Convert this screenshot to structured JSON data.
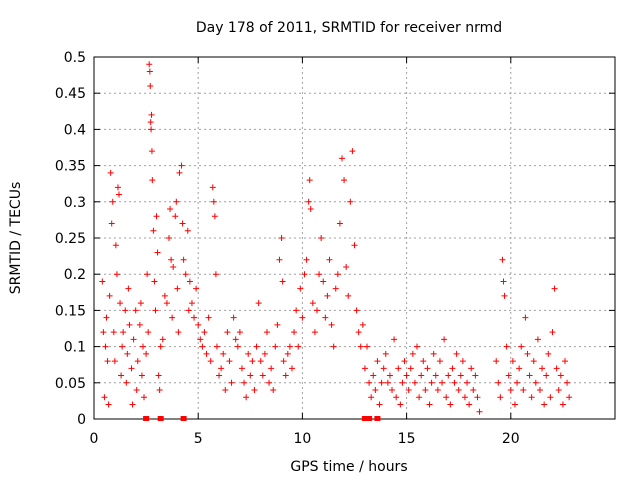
{
  "chart_data": {
    "type": "scatter",
    "title": "Day 178 of 2011, SRMTID for receiver nrmd",
    "xlabel": "GPS time / hours",
    "ylabel": "SRMTID / TECUs",
    "xlim": [
      0,
      25
    ],
    "ylim": [
      0,
      0.5
    ],
    "x_ticks": [
      "0",
      "5",
      "10",
      "15",
      "20"
    ],
    "y_ticks": [
      "0",
      "0.05",
      "0.1",
      "0.15",
      "0.2",
      "0.25",
      "0.3",
      "0.35",
      "0.4",
      "0.45",
      "0.5"
    ],
    "grid": true,
    "marker": "plus",
    "color": "#ff0000",
    "points": [
      [
        0.4,
        0.19
      ],
      [
        0.45,
        0.12
      ],
      [
        0.5,
        0.03
      ],
      [
        0.55,
        0.1
      ],
      [
        0.6,
        0.14
      ],
      [
        0.65,
        0.08
      ],
      [
        0.7,
        0.02
      ],
      [
        0.75,
        0.17
      ],
      [
        0.8,
        0.34
      ],
      [
        0.85,
        0.27
      ],
      [
        0.9,
        0.3
      ],
      [
        0.95,
        0.12
      ],
      [
        1.0,
        0.08
      ],
      [
        1.05,
        0.24
      ],
      [
        1.1,
        0.2
      ],
      [
        1.15,
        0.32
      ],
      [
        1.2,
        0.31
      ],
      [
        1.25,
        0.16
      ],
      [
        1.3,
        0.06
      ],
      [
        1.35,
        0.1
      ],
      [
        1.4,
        0.12
      ],
      [
        1.5,
        0.15
      ],
      [
        1.55,
        0.05
      ],
      [
        1.6,
        0.09
      ],
      [
        1.65,
        0.18
      ],
      [
        1.7,
        0.13
      ],
      [
        1.8,
        0.07
      ],
      [
        1.85,
        0.02
      ],
      [
        1.9,
        0.11
      ],
      [
        2.0,
        0.15
      ],
      [
        2.05,
        0.04
      ],
      [
        2.1,
        0.08
      ],
      [
        2.2,
        0.13
      ],
      [
        2.25,
        0.16
      ],
      [
        2.3,
        0.06
      ],
      [
        2.35,
        0.1
      ],
      [
        2.4,
        0.03
      ],
      [
        2.5,
        0.09
      ],
      [
        2.55,
        0.2
      ],
      [
        2.6,
        0.12
      ],
      [
        2.65,
        0.49
      ],
      [
        2.68,
        0.48
      ],
      [
        2.7,
        0.46
      ],
      [
        2.72,
        0.41
      ],
      [
        2.74,
        0.4
      ],
      [
        2.76,
        0.42
      ],
      [
        2.78,
        0.37
      ],
      [
        2.8,
        0.33
      ],
      [
        2.85,
        0.26
      ],
      [
        2.9,
        0.19
      ],
      [
        2.95,
        0.15
      ],
      [
        3.0,
        0.28
      ],
      [
        3.05,
        0.23
      ],
      [
        3.1,
        0.06
      ],
      [
        3.15,
        0.04
      ],
      [
        3.2,
        0.1
      ],
      [
        3.3,
        0.11
      ],
      [
        3.4,
        0.17
      ],
      [
        3.5,
        0.16
      ],
      [
        3.6,
        0.25
      ],
      [
        3.65,
        0.29
      ],
      [
        3.7,
        0.22
      ],
      [
        3.75,
        0.14
      ],
      [
        3.8,
        0.21
      ],
      [
        3.9,
        0.28
      ],
      [
        3.95,
        0.3
      ],
      [
        4.0,
        0.18
      ],
      [
        4.05,
        0.12
      ],
      [
        4.1,
        0.34
      ],
      [
        4.2,
        0.35
      ],
      [
        4.25,
        0.27
      ],
      [
        4.3,
        0.22
      ],
      [
        4.4,
        0.2
      ],
      [
        4.5,
        0.26
      ],
      [
        4.55,
        0.15
      ],
      [
        4.6,
        0.19
      ],
      [
        4.7,
        0.16
      ],
      [
        4.8,
        0.14
      ],
      [
        4.9,
        0.18
      ],
      [
        5.0,
        0.13
      ],
      [
        5.1,
        0.11
      ],
      [
        5.2,
        0.1
      ],
      [
        5.3,
        0.12
      ],
      [
        5.4,
        0.09
      ],
      [
        5.5,
        0.14
      ],
      [
        5.6,
        0.08
      ],
      [
        5.7,
        0.32
      ],
      [
        5.75,
        0.3
      ],
      [
        5.8,
        0.28
      ],
      [
        5.85,
        0.2
      ],
      [
        5.9,
        0.1
      ],
      [
        6.0,
        0.06
      ],
      [
        6.1,
        0.07
      ],
      [
        6.2,
        0.09
      ],
      [
        6.3,
        0.04
      ],
      [
        6.4,
        0.12
      ],
      [
        6.5,
        0.08
      ],
      [
        6.6,
        0.05
      ],
      [
        6.7,
        0.14
      ],
      [
        6.8,
        0.11
      ],
      [
        6.9,
        0.1
      ],
      [
        7.0,
        0.12
      ],
      [
        7.1,
        0.07
      ],
      [
        7.2,
        0.05
      ],
      [
        7.3,
        0.03
      ],
      [
        7.4,
        0.09
      ],
      [
        7.5,
        0.06
      ],
      [
        7.6,
        0.08
      ],
      [
        7.7,
        0.04
      ],
      [
        7.8,
        0.1
      ],
      [
        7.9,
        0.16
      ],
      [
        8.0,
        0.08
      ],
      [
        8.1,
        0.06
      ],
      [
        8.2,
        0.09
      ],
      [
        8.3,
        0.12
      ],
      [
        8.4,
        0.05
      ],
      [
        8.5,
        0.07
      ],
      [
        8.6,
        0.04
      ],
      [
        8.7,
        0.1
      ],
      [
        8.8,
        0.13
      ],
      [
        8.9,
        0.22
      ],
      [
        9.0,
        0.25
      ],
      [
        9.05,
        0.19
      ],
      [
        9.1,
        0.08
      ],
      [
        9.2,
        0.06
      ],
      [
        9.3,
        0.09
      ],
      [
        9.4,
        0.1
      ],
      [
        9.5,
        0.07
      ],
      [
        9.6,
        0.12
      ],
      [
        9.7,
        0.15
      ],
      [
        9.8,
        0.1
      ],
      [
        9.9,
        0.18
      ],
      [
        10.0,
        0.14
      ],
      [
        10.1,
        0.2
      ],
      [
        10.2,
        0.22
      ],
      [
        10.3,
        0.3
      ],
      [
        10.35,
        0.33
      ],
      [
        10.4,
        0.29
      ],
      [
        10.5,
        0.16
      ],
      [
        10.6,
        0.12
      ],
      [
        10.7,
        0.15
      ],
      [
        10.8,
        0.2
      ],
      [
        10.9,
        0.25
      ],
      [
        11.0,
        0.19
      ],
      [
        11.1,
        0.14
      ],
      [
        11.2,
        0.17
      ],
      [
        11.3,
        0.22
      ],
      [
        11.4,
        0.13
      ],
      [
        11.5,
        0.1
      ],
      [
        11.6,
        0.18
      ],
      [
        11.7,
        0.2
      ],
      [
        11.8,
        0.27
      ],
      [
        11.9,
        0.36
      ],
      [
        12.0,
        0.33
      ],
      [
        12.1,
        0.21
      ],
      [
        12.2,
        0.17
      ],
      [
        12.3,
        0.3
      ],
      [
        12.4,
        0.37
      ],
      [
        12.5,
        0.24
      ],
      [
        12.6,
        0.15
      ],
      [
        12.7,
        0.12
      ],
      [
        12.8,
        0.1
      ],
      [
        12.9,
        0.13
      ],
      [
        13.0,
        0.07
      ],
      [
        13.1,
        0.1
      ],
      [
        13.2,
        0.05
      ],
      [
        13.3,
        0.03
      ],
      [
        13.4,
        0.06
      ],
      [
        13.5,
        0.04
      ],
      [
        13.6,
        0.08
      ],
      [
        13.7,
        0.02
      ],
      [
        13.8,
        0.05
      ],
      [
        13.9,
        0.07
      ],
      [
        14.0,
        0.09
      ],
      [
        14.1,
        0.05
      ],
      [
        14.2,
        0.06
      ],
      [
        14.3,
        0.04
      ],
      [
        14.4,
        0.11
      ],
      [
        14.5,
        0.03
      ],
      [
        14.6,
        0.07
      ],
      [
        14.7,
        0.02
      ],
      [
        14.8,
        0.05
      ],
      [
        14.9,
        0.08
      ],
      [
        15.0,
        0.06
      ],
      [
        15.1,
        0.04
      ],
      [
        15.2,
        0.07
      ],
      [
        15.3,
        0.09
      ],
      [
        15.4,
        0.05
      ],
      [
        15.5,
        0.1
      ],
      [
        15.6,
        0.03
      ],
      [
        15.7,
        0.06
      ],
      [
        15.8,
        0.08
      ],
      [
        15.9,
        0.04
      ],
      [
        16.0,
        0.07
      ],
      [
        16.1,
        0.02
      ],
      [
        16.2,
        0.05
      ],
      [
        16.3,
        0.09
      ],
      [
        16.4,
        0.06
      ],
      [
        16.5,
        0.04
      ],
      [
        16.6,
        0.08
      ],
      [
        16.7,
        0.05
      ],
      [
        16.8,
        0.11
      ],
      [
        16.9,
        0.03
      ],
      [
        17.0,
        0.06
      ],
      [
        17.1,
        0.02
      ],
      [
        17.2,
        0.07
      ],
      [
        17.3,
        0.05
      ],
      [
        17.4,
        0.09
      ],
      [
        17.5,
        0.04
      ],
      [
        17.6,
        0.06
      ],
      [
        17.7,
        0.08
      ],
      [
        17.8,
        0.03
      ],
      [
        17.9,
        0.05
      ],
      [
        18.0,
        0.02
      ],
      [
        18.1,
        0.07
      ],
      [
        18.2,
        0.04
      ],
      [
        18.3,
        0.06
      ],
      [
        18.4,
        0.03
      ],
      [
        18.5,
        0.01
      ],
      [
        19.3,
        0.08
      ],
      [
        19.4,
        0.05
      ],
      [
        19.5,
        0.03
      ],
      [
        19.6,
        0.22
      ],
      [
        19.65,
        0.19
      ],
      [
        19.7,
        0.17
      ],
      [
        19.8,
        0.1
      ],
      [
        19.9,
        0.06
      ],
      [
        20.0,
        0.04
      ],
      [
        20.1,
        0.08
      ],
      [
        20.2,
        0.02
      ],
      [
        20.3,
        0.05
      ],
      [
        20.4,
        0.07
      ],
      [
        20.5,
        0.1
      ],
      [
        20.6,
        0.04
      ],
      [
        20.7,
        0.14
      ],
      [
        20.8,
        0.09
      ],
      [
        20.9,
        0.06
      ],
      [
        21.0,
        0.03
      ],
      [
        21.1,
        0.08
      ],
      [
        21.2,
        0.05
      ],
      [
        21.3,
        0.11
      ],
      [
        21.4,
        0.04
      ],
      [
        21.5,
        0.07
      ],
      [
        21.6,
        0.02
      ],
      [
        21.7,
        0.06
      ],
      [
        21.8,
        0.09
      ],
      [
        21.9,
        0.03
      ],
      [
        22.0,
        0.12
      ],
      [
        22.1,
        0.18
      ],
      [
        22.2,
        0.07
      ],
      [
        22.3,
        0.04
      ],
      [
        22.4,
        0.06
      ],
      [
        22.5,
        0.02
      ],
      [
        22.6,
        0.08
      ],
      [
        22.7,
        0.05
      ],
      [
        22.8,
        0.03
      ]
    ],
    "zero_points": [
      2.5,
      3.2,
      4.3,
      13.0,
      13.2,
      13.6
    ]
  }
}
